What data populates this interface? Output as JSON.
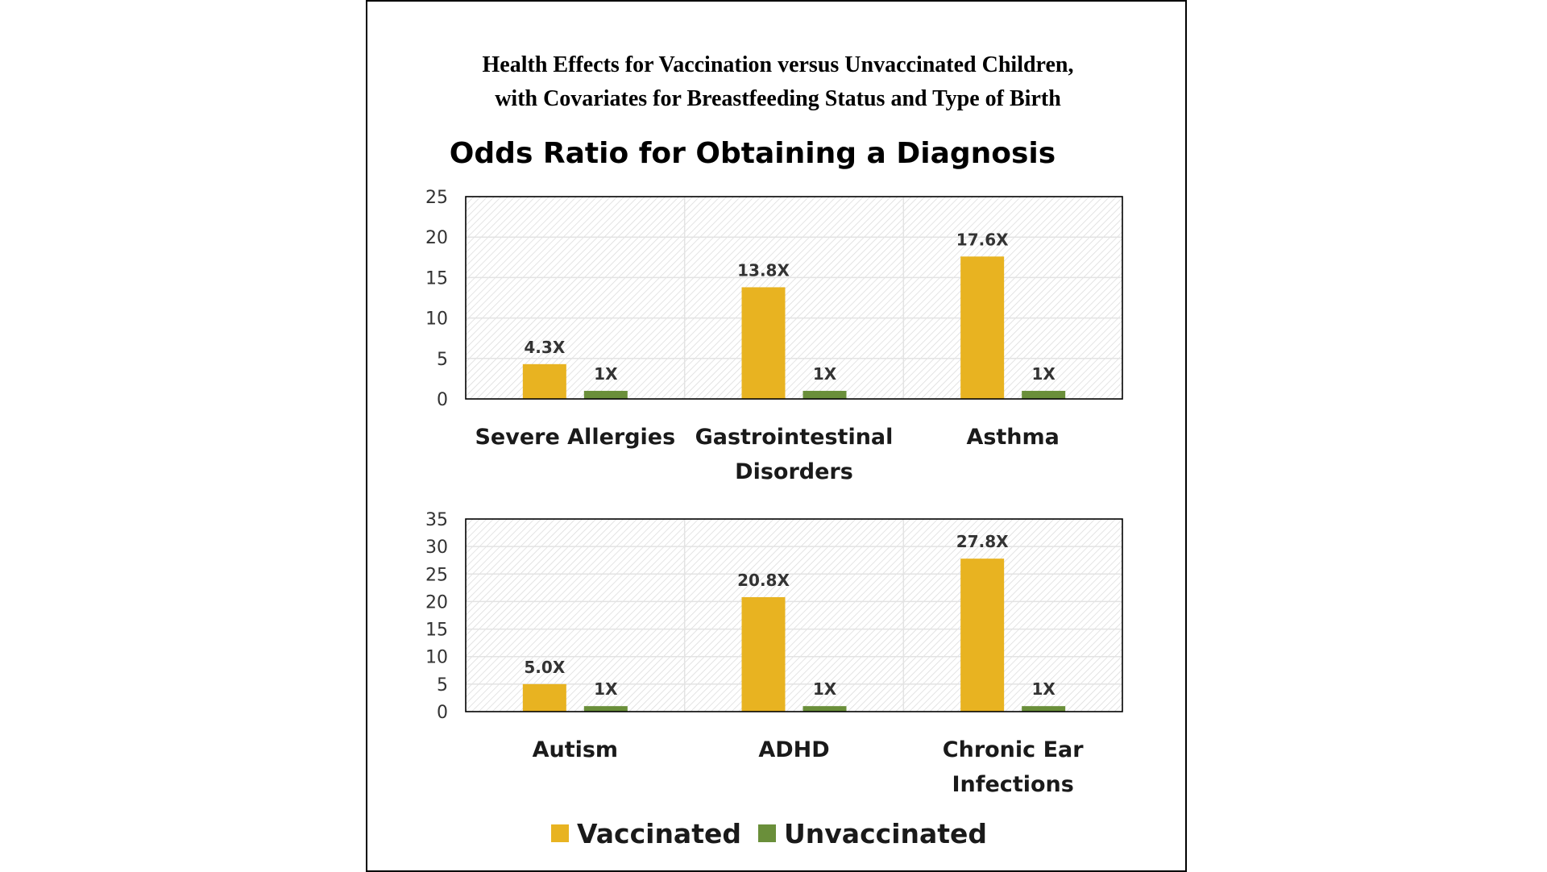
{
  "figure_title": {
    "line1": "Health Effects for Vaccination versus Unvaccinated Children,",
    "line2": "with Covariates for Breastfeeding Status and Type of Birth"
  },
  "colors": {
    "vaccinated": "#E8B321",
    "unvaccinated": "#6A8F3A",
    "plot_border": "#000000",
    "hatch": "#d9d9d9",
    "gridline": "#e3e3e3"
  },
  "legend": {
    "vaccinated_label": "Vaccinated",
    "unvaccinated_label": "Unvaccinated"
  },
  "chart_data": [
    {
      "type": "bar",
      "title": "Odds Ratio for Obtaining a Diagnosis",
      "categories": [
        [
          "Severe Allergies"
        ],
        [
          "Gastrointestinal",
          "Disorders"
        ],
        [
          "Asthma"
        ]
      ],
      "series": [
        {
          "name": "Vaccinated",
          "values": [
            4.3,
            13.8,
            17.6
          ],
          "labels": [
            "4.3X",
            "13.8X",
            "17.6X"
          ]
        },
        {
          "name": "Unvaccinated",
          "values": [
            1,
            1,
            1
          ],
          "labels": [
            "1X",
            "1X",
            "1X"
          ]
        }
      ],
      "ylim": [
        0,
        25
      ],
      "yticks": [
        0,
        5,
        10,
        15,
        20,
        25
      ],
      "grid": true
    },
    {
      "type": "bar",
      "title": "",
      "categories": [
        [
          "Autism"
        ],
        [
          "ADHD"
        ],
        [
          "Chronic Ear",
          "Infections"
        ]
      ],
      "series": [
        {
          "name": "Vaccinated",
          "values": [
            5.0,
            20.8,
            27.8
          ],
          "labels": [
            "5.0X",
            "20.8X",
            "27.8X"
          ]
        },
        {
          "name": "Unvaccinated",
          "values": [
            1,
            1,
            1
          ],
          "labels": [
            "1X",
            "1X",
            "1X"
          ]
        }
      ],
      "ylim": [
        0,
        35
      ],
      "yticks": [
        0,
        5,
        10,
        15,
        20,
        25,
        30,
        35
      ],
      "grid": true
    }
  ]
}
